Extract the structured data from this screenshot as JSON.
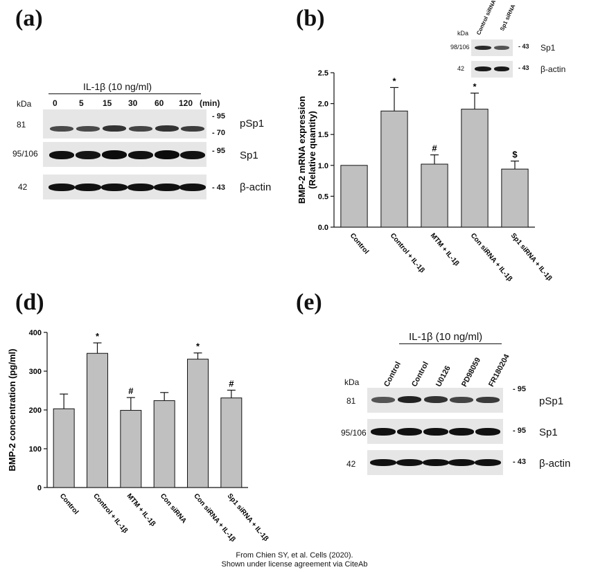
{
  "panels": {
    "a": {
      "letter": "(a)",
      "treatment": "IL-1β (10 ng/ml)",
      "kda_label": "kDa",
      "lanes": [
        "0",
        "5",
        "15",
        "30",
        "60",
        "120"
      ],
      "unit": "(min)",
      "rows": [
        {
          "kda": "81",
          "markers": [
            "- 95",
            "- 70"
          ],
          "protein": "pSp1"
        },
        {
          "kda": "95/106",
          "markers": [
            "- 95"
          ],
          "protein": "Sp1"
        },
        {
          "kda": "42",
          "markers": [
            "- 43"
          ],
          "protein": "β-actin"
        }
      ]
    },
    "b": {
      "letter": "(b)",
      "inset": {
        "kda_label": "kDa",
        "lanes": [
          "Control siRNA",
          "Sp1 siRNA"
        ],
        "rows": [
          {
            "kda": "98/106",
            "marker": "- 43",
            "protein": "Sp1"
          },
          {
            "kda": "42",
            "marker": "- 43",
            "protein": "β-actin"
          }
        ]
      }
    },
    "d": {
      "letter": "(d)"
    },
    "e": {
      "letter": "(e)",
      "treatment": "IL-1β (10 ng/ml)",
      "kda_label": "kDa",
      "lanes": [
        "Control",
        "Control",
        "U0126",
        "PD98059",
        "FR180204"
      ],
      "rows": [
        {
          "kda": "81",
          "marker": "- 95",
          "protein": "pSp1"
        },
        {
          "kda": "95/106",
          "marker": "- 95",
          "protein": "Sp1"
        },
        {
          "kda": "42",
          "marker": "- 43",
          "protein": "β-actin"
        }
      ]
    }
  },
  "chart_data": [
    {
      "id": "b",
      "type": "bar",
      "categories": [
        "Control",
        "Control + IL-1β",
        "MTM + IL-1β",
        "Con siRNA + IL-1β",
        "Sp1 siRNA + IL-1β"
      ],
      "values": [
        1.0,
        1.88,
        1.02,
        1.91,
        0.94
      ],
      "errors": [
        0,
        0.38,
        0.15,
        0.26,
        0.13
      ],
      "annotations": [
        "",
        "*",
        "#",
        "*",
        "$"
      ],
      "ylabel": "BMP-2 mRNA expression\n(Relative quantity)",
      "ylim": [
        0,
        2.5
      ],
      "yticks": [
        "0.0",
        "0.5",
        "1.0",
        "1.5",
        "2.0",
        "2.5"
      ],
      "bar_color": "#c0c0c0"
    },
    {
      "id": "d",
      "type": "bar",
      "categories": [
        "Control",
        "Control + IL-1β",
        "MTM + IL-1β",
        "Con siRNA",
        "Con siRNA + IL-1β",
        "Sp1 siRNA + IL-1β"
      ],
      "values": [
        203,
        346,
        199,
        224,
        331,
        231
      ],
      "errors": [
        38,
        27,
        33,
        21,
        16,
        20
      ],
      "annotations": [
        "",
        "*",
        "#",
        "",
        "*",
        "#"
      ],
      "ylabel": "BMP-2 concentration (pg/ml)",
      "ylim": [
        0,
        400
      ],
      "yticks": [
        "0",
        "100",
        "200",
        "300",
        "400"
      ],
      "bar_color": "#c0c0c0"
    }
  ],
  "credit": {
    "line1": "From Chien SY, et al. Cells (2020).",
    "line2": "Shown under license agreement via CiteAb"
  }
}
